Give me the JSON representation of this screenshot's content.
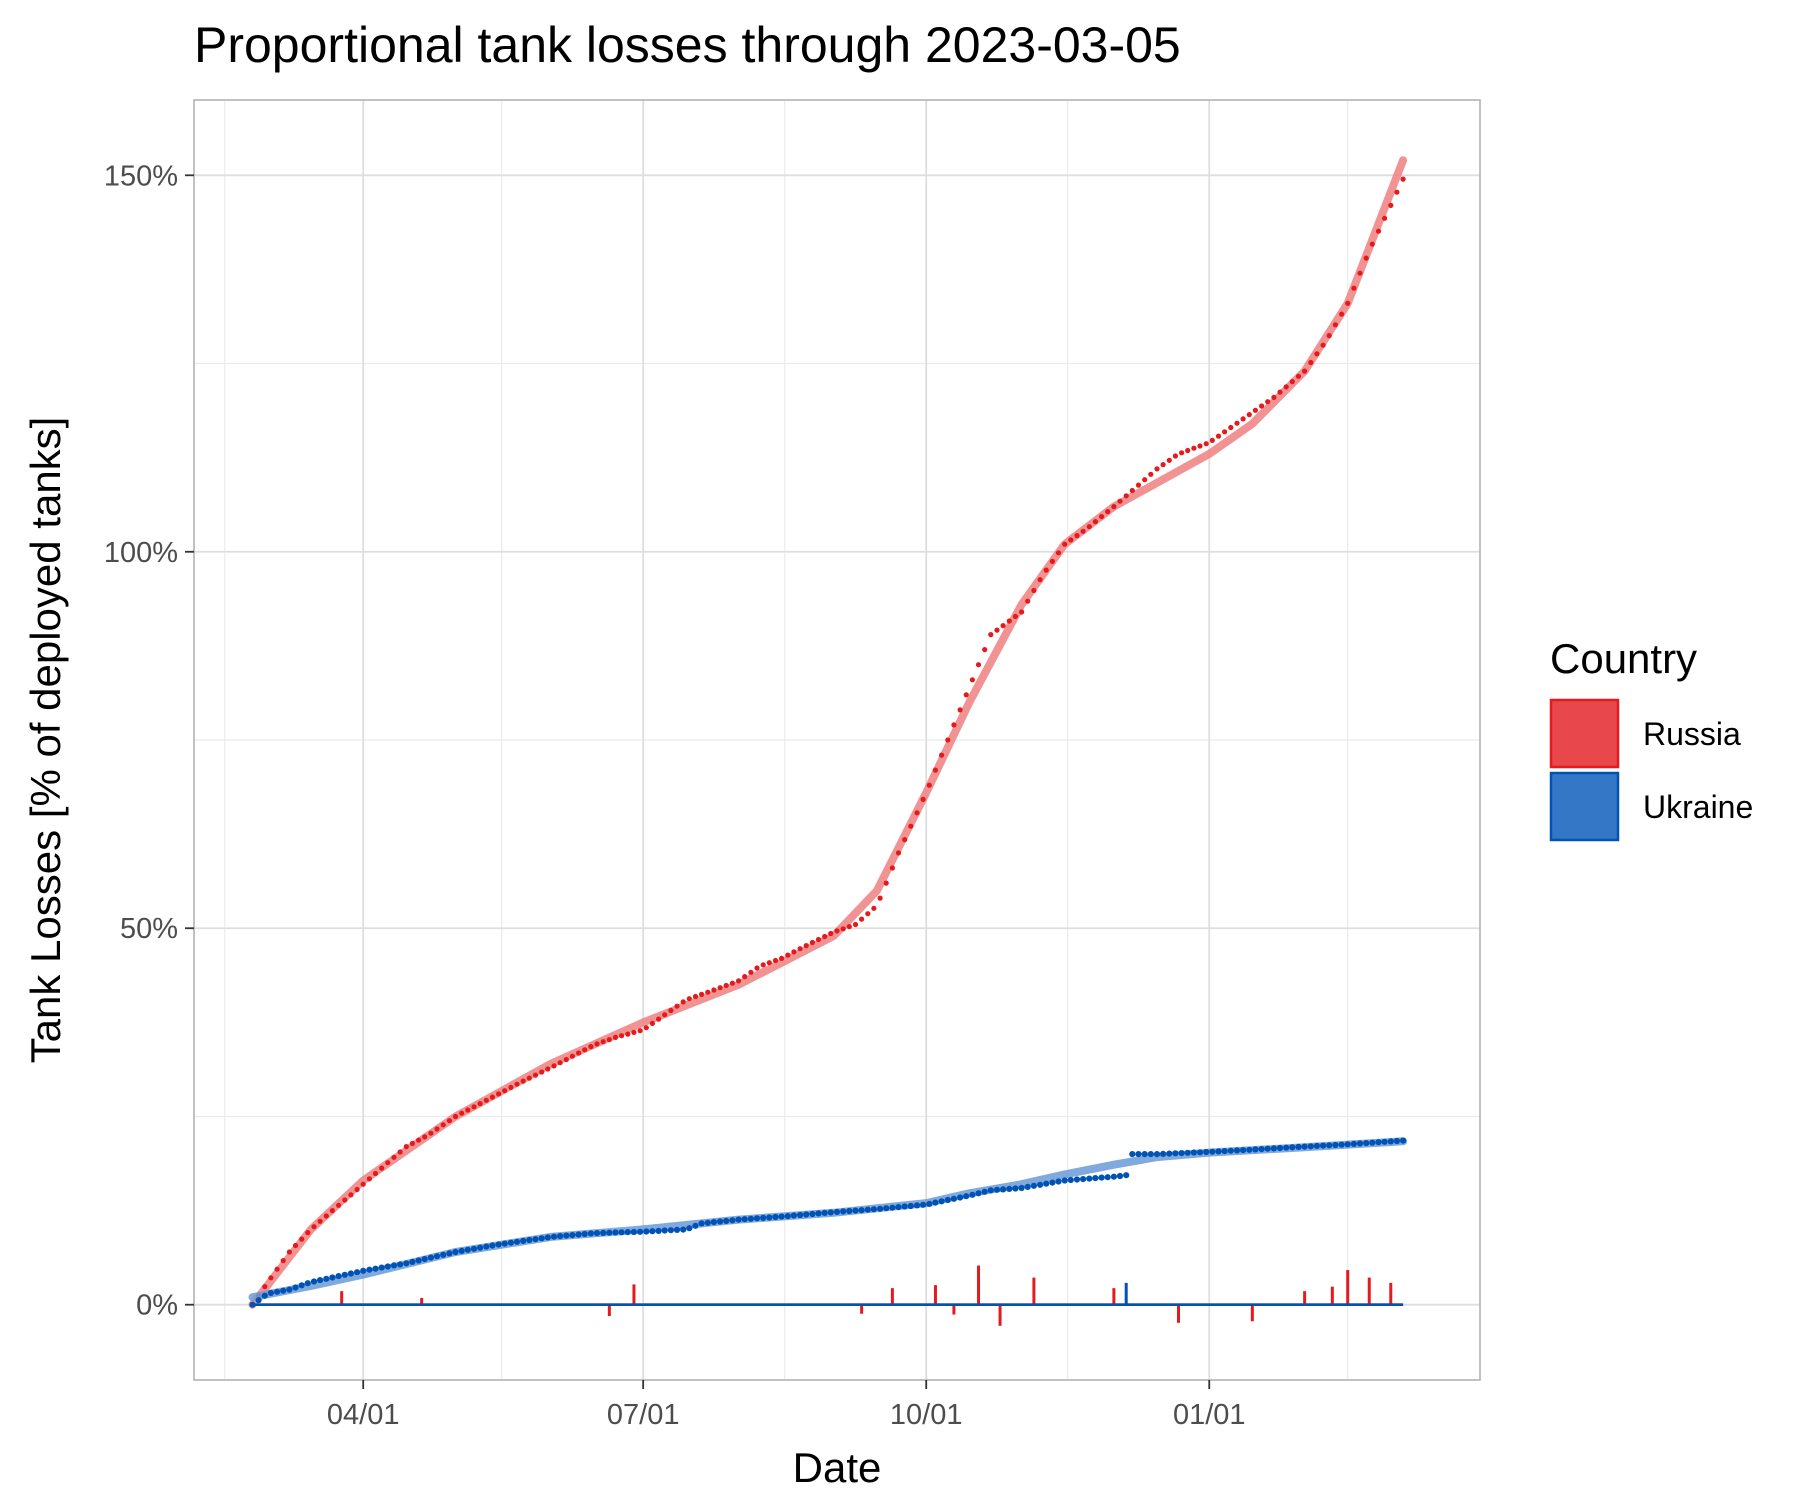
{
  "chart_data": {
    "type": "line",
    "title": "Proportional tank losses through 2023-03-05",
    "xlabel": "Date",
    "ylabel": "Tank Losses [% of deployed tanks]",
    "x_range": [
      "2022-02-05",
      "2023-03-30"
    ],
    "x_tick_labels": [
      {
        "date": "2022-04-01",
        "label": "04/01"
      },
      {
        "date": "2022-07-01",
        "label": "07/01"
      },
      {
        "date": "2022-10-01",
        "label": "10/01"
      },
      {
        "date": "2023-01-01",
        "label": "01/01"
      }
    ],
    "x_minor_ticks": [
      "2022-02-15",
      "2022-05-16",
      "2022-08-16",
      "2022-11-16",
      "2023-02-15"
    ],
    "ylim": [
      -10,
      160
    ],
    "y_ticks": [
      0,
      50,
      100,
      150
    ],
    "y_tick_labels": [
      "0%",
      "50%",
      "100%",
      "150%"
    ],
    "y_minor_ticks": [
      25,
      75,
      125
    ],
    "grid": true,
    "legend": {
      "title": "Country",
      "position": "right"
    },
    "series": [
      {
        "name": "Russia",
        "color": "#e41a1c",
        "smooth_color": "#f08080",
        "cumulative": [
          [
            "2022-02-24",
            0
          ],
          [
            "2022-03-01",
            3
          ],
          [
            "2022-03-08",
            7
          ],
          [
            "2022-03-15",
            10
          ],
          [
            "2022-03-22",
            12.5
          ],
          [
            "2022-04-01",
            16
          ],
          [
            "2022-04-08",
            18.5
          ],
          [
            "2022-04-15",
            21
          ],
          [
            "2022-04-22",
            22.5
          ],
          [
            "2022-05-01",
            25
          ],
          [
            "2022-05-08",
            26.5
          ],
          [
            "2022-05-15",
            28
          ],
          [
            "2022-05-22",
            29.5
          ],
          [
            "2022-06-01",
            31.5
          ],
          [
            "2022-06-08",
            33
          ],
          [
            "2022-06-15",
            34.5
          ],
          [
            "2022-06-22",
            35.5
          ],
          [
            "2022-07-01",
            36.5
          ],
          [
            "2022-07-08",
            38.5
          ],
          [
            "2022-07-15",
            40.5
          ],
          [
            "2022-07-22",
            41.5
          ],
          [
            "2022-08-01",
            43
          ],
          [
            "2022-08-08",
            45
          ],
          [
            "2022-08-15",
            46
          ],
          [
            "2022-08-22",
            47.5
          ],
          [
            "2022-09-01",
            49.5
          ],
          [
            "2022-09-08",
            50.5
          ],
          [
            "2022-09-15",
            53
          ],
          [
            "2022-09-22",
            60
          ],
          [
            "2022-10-01",
            68
          ],
          [
            "2022-10-08",
            75
          ],
          [
            "2022-10-15",
            82
          ],
          [
            "2022-10-22",
            89
          ],
          [
            "2022-11-01",
            92
          ],
          [
            "2022-11-08",
            97
          ],
          [
            "2022-11-15",
            101
          ],
          [
            "2022-11-22",
            103
          ],
          [
            "2022-12-01",
            106
          ],
          [
            "2022-12-08",
            108.5
          ],
          [
            "2022-12-15",
            111
          ],
          [
            "2022-12-22",
            113
          ],
          [
            "2023-01-01",
            114.5
          ],
          [
            "2023-01-08",
            116.5
          ],
          [
            "2023-01-15",
            118.5
          ],
          [
            "2023-01-22",
            120.5
          ],
          [
            "2023-02-01",
            124
          ],
          [
            "2023-02-08",
            128
          ],
          [
            "2023-02-15",
            133
          ],
          [
            "2023-02-22",
            140
          ],
          [
            "2023-03-01",
            146
          ],
          [
            "2023-03-05",
            149.5
          ]
        ],
        "smooth": [
          [
            "2022-02-24",
            0
          ],
          [
            "2022-03-15",
            10
          ],
          [
            "2022-04-01",
            16.5
          ],
          [
            "2022-05-01",
            25
          ],
          [
            "2022-06-01",
            32
          ],
          [
            "2022-07-01",
            37.5
          ],
          [
            "2022-08-01",
            42.5
          ],
          [
            "2022-09-01",
            49
          ],
          [
            "2022-09-15",
            55
          ],
          [
            "2022-10-01",
            68
          ],
          [
            "2022-10-15",
            80
          ],
          [
            "2022-11-01",
            93
          ],
          [
            "2022-11-15",
            101
          ],
          [
            "2022-12-01",
            106
          ],
          [
            "2023-01-01",
            113
          ],
          [
            "2023-01-15",
            117
          ],
          [
            "2023-02-01",
            124
          ],
          [
            "2023-02-15",
            133
          ],
          [
            "2023-03-05",
            152
          ]
        ],
        "daily": [
          [
            "2022-03-25",
            1.8
          ],
          [
            "2022-04-20",
            0.9
          ],
          [
            "2022-06-20",
            -1.5
          ],
          [
            "2022-06-28",
            2.7
          ],
          [
            "2022-09-10",
            -1.2
          ],
          [
            "2022-09-20",
            2.2
          ],
          [
            "2022-10-04",
            2.6
          ],
          [
            "2022-10-10",
            -1.3
          ],
          [
            "2022-10-18",
            5.2
          ],
          [
            "2022-10-25",
            -2.8
          ],
          [
            "2022-11-05",
            3.6
          ],
          [
            "2022-12-01",
            2.2
          ],
          [
            "2022-12-22",
            -2.4
          ],
          [
            "2023-01-15",
            -2.2
          ],
          [
            "2023-02-01",
            1.8
          ],
          [
            "2023-02-10",
            2.4
          ],
          [
            "2023-02-15",
            4.6
          ],
          [
            "2023-02-22",
            3.6
          ],
          [
            "2023-03-01",
            2.9
          ]
        ]
      },
      {
        "name": "Ukraine",
        "color": "#0052b4",
        "smooth_color": "#6a9bd8",
        "cumulative": [
          [
            "2022-02-24",
            0
          ],
          [
            "2022-03-01",
            1.5
          ],
          [
            "2022-03-08",
            2
          ],
          [
            "2022-03-15",
            3
          ],
          [
            "2022-04-01",
            4.5
          ],
          [
            "2022-04-15",
            5.5
          ],
          [
            "2022-05-01",
            7
          ],
          [
            "2022-05-15",
            8
          ],
          [
            "2022-06-01",
            9
          ],
          [
            "2022-06-15",
            9.5
          ],
          [
            "2022-07-01",
            9.7
          ],
          [
            "2022-07-15",
            10
          ],
          [
            "2022-07-20",
            10.8
          ],
          [
            "2022-08-01",
            11.3
          ],
          [
            "2022-08-15",
            11.7
          ],
          [
            "2022-09-01",
            12.3
          ],
          [
            "2022-09-15",
            12.7
          ],
          [
            "2022-10-01",
            13.3
          ],
          [
            "2022-10-15",
            14.5
          ],
          [
            "2022-10-22",
            15.2
          ],
          [
            "2022-11-01",
            15.5
          ],
          [
            "2022-11-15",
            16.5
          ],
          [
            "2022-12-01",
            17
          ],
          [
            "2022-12-05",
            17.2
          ],
          [
            "2022-12-06",
            20
          ],
          [
            "2022-12-15",
            20
          ],
          [
            "2023-01-01",
            20.3
          ],
          [
            "2023-01-15",
            20.6
          ],
          [
            "2023-02-01",
            21
          ],
          [
            "2023-02-15",
            21.3
          ],
          [
            "2023-03-05",
            21.8
          ]
        ],
        "smooth": [
          [
            "2022-02-24",
            1
          ],
          [
            "2022-03-15",
            2.5
          ],
          [
            "2022-04-01",
            4
          ],
          [
            "2022-05-01",
            7
          ],
          [
            "2022-06-01",
            9
          ],
          [
            "2022-07-01",
            10
          ],
          [
            "2022-08-01",
            11.3
          ],
          [
            "2022-09-01",
            12.2
          ],
          [
            "2022-10-01",
            13.5
          ],
          [
            "2022-10-15",
            14.8
          ],
          [
            "2022-11-01",
            16
          ],
          [
            "2022-11-15",
            17.3
          ],
          [
            "2022-12-01",
            18.6
          ],
          [
            "2022-12-15",
            19.6
          ],
          [
            "2023-01-01",
            20.2
          ],
          [
            "2023-02-01",
            20.9
          ],
          [
            "2023-03-05",
            21.7
          ]
        ],
        "daily": [
          [
            "2022-12-05",
            2.9
          ]
        ]
      }
    ]
  }
}
